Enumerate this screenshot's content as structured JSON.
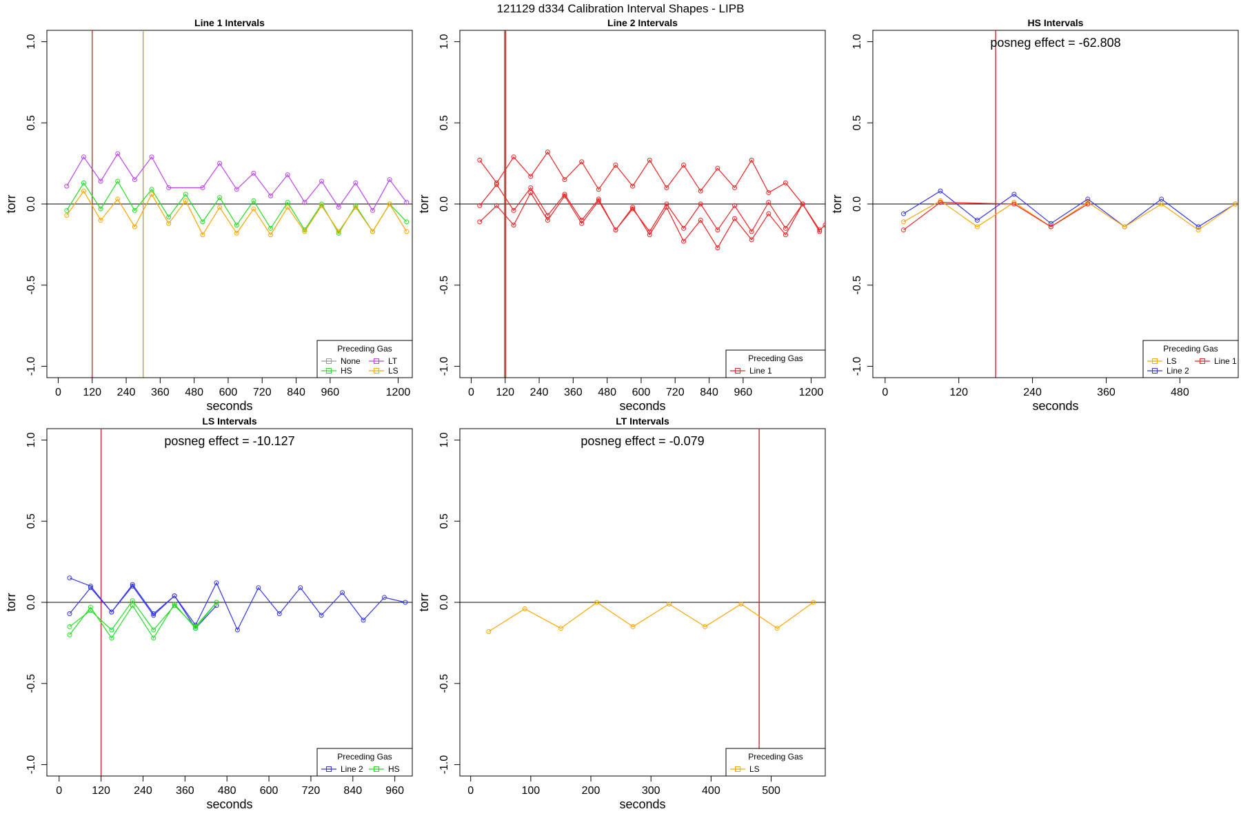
{
  "main_title": "121129   d334   Calibration Interval Shapes - LIPB",
  "chart_data": [
    {
      "type": "line",
      "title": "Line 1 Intervals",
      "xlabel": "seconds",
      "ylabel": "torr",
      "xlim": [
        -40,
        1250
      ],
      "ylim": [
        -1.07,
        1.07
      ],
      "xticks": [
        0,
        120,
        240,
        360,
        480,
        600,
        720,
        840,
        960,
        1200
      ],
      "yticks": [
        1.0,
        0.5,
        0.0,
        -0.5,
        -1.0
      ],
      "ytick_labels": [
        "1.0",
        "0.5",
        "0.0",
        "-0.5",
        "-1.0"
      ],
      "vlines": [
        {
          "x": 120,
          "color": "#c02020"
        },
        {
          "x": 300,
          "color": "#c8a000"
        }
      ],
      "legend": {
        "title": "Preceding Gas",
        "position": "bottom-right",
        "columns": 2,
        "entries": [
          {
            "label": "None",
            "color": "#999999"
          },
          {
            "label": "LT",
            "color": "#bb44ee"
          },
          {
            "label": "HS",
            "color": "#22dd22"
          },
          {
            "label": "LS",
            "color": "#ffa500"
          }
        ]
      },
      "series": [
        {
          "name": "LT",
          "color": "#bb44ee",
          "x": [
            30,
            90,
            150,
            210,
            270,
            330,
            390,
            510,
            570,
            630,
            690,
            750,
            810,
            870,
            930,
            990,
            1050,
            1110,
            1170,
            1230
          ],
          "y": [
            0.11,
            0.29,
            0.14,
            0.31,
            0.15,
            0.29,
            0.1,
            0.1,
            0.25,
            0.09,
            0.19,
            0.05,
            0.18,
            0.01,
            0.14,
            -0.02,
            0.13,
            -0.04,
            0.15,
            0.01
          ]
        },
        {
          "name": "HS",
          "color": "#22dd22",
          "x": [
            30,
            90,
            150,
            210,
            270,
            330,
            390,
            450,
            510,
            570,
            630,
            690,
            750,
            810,
            870,
            930,
            990,
            1050,
            1110,
            1170,
            1230
          ],
          "y": [
            -0.04,
            0.13,
            -0.03,
            0.14,
            -0.04,
            0.09,
            -0.08,
            0.06,
            -0.11,
            0.04,
            -0.13,
            0.02,
            -0.15,
            0.01,
            -0.16,
            0.0,
            -0.18,
            -0.01,
            -0.17,
            0.0,
            -0.11
          ]
        },
        {
          "name": "LS",
          "color": "#ffa500",
          "x": [
            30,
            90,
            150,
            210,
            270,
            330,
            390,
            450,
            510,
            570,
            630,
            690,
            750,
            810,
            870,
            930,
            990,
            1050,
            1110,
            1170,
            1230
          ],
          "y": [
            -0.07,
            0.08,
            -0.1,
            0.03,
            -0.14,
            0.06,
            -0.12,
            0.02,
            -0.19,
            -0.02,
            -0.18,
            -0.03,
            -0.19,
            -0.02,
            -0.17,
            -0.01,
            -0.17,
            -0.02,
            -0.17,
            0.0,
            -0.17
          ]
        }
      ]
    },
    {
      "type": "line",
      "title": "Line 2 Intervals",
      "xlabel": "seconds",
      "ylabel": "torr",
      "xlim": [
        -40,
        1250
      ],
      "ylim": [
        -1.07,
        1.07
      ],
      "xticks": [
        0,
        120,
        240,
        360,
        480,
        600,
        720,
        840,
        960,
        1200
      ],
      "yticks": [
        1.0,
        0.5,
        0.0,
        -0.5,
        -1.0
      ],
      "ytick_labels": [
        "1.0",
        "0.5",
        "0.0",
        "-0.5",
        "-1.0"
      ],
      "vlines": [
        {
          "x": 118,
          "color": "#c02020"
        },
        {
          "x": 122,
          "color": "#c02020"
        }
      ],
      "legend": {
        "title": "Preceding Gas",
        "position": "bottom-right",
        "columns": 1,
        "entries": [
          {
            "label": "Line 1",
            "color": "#ee2222"
          }
        ]
      },
      "series": [
        {
          "name": "Line 1 a",
          "color": "#ee2222",
          "x": [
            30,
            90,
            150,
            210,
            270,
            330,
            390,
            450,
            510,
            570,
            630,
            690,
            750,
            810,
            870,
            930,
            990,
            1050,
            1110,
            1170,
            1230,
            1250
          ],
          "y": [
            0.27,
            0.13,
            0.29,
            0.17,
            0.32,
            0.15,
            0.26,
            0.09,
            0.24,
            0.11,
            0.27,
            0.1,
            0.24,
            0.08,
            0.22,
            0.1,
            0.27,
            0.07,
            0.13,
            0.0,
            -0.16,
            -0.13
          ]
        },
        {
          "name": "Line 1 b",
          "color": "#ee2222",
          "x": [
            30,
            90,
            150,
            210,
            270,
            330,
            390,
            450,
            510,
            570,
            630,
            690,
            750,
            810,
            870,
            930,
            990,
            1050,
            1110,
            1170,
            1230
          ],
          "y": [
            -0.01,
            0.12,
            -0.04,
            0.1,
            -0.07,
            0.06,
            -0.1,
            0.03,
            -0.16,
            -0.03,
            -0.17,
            0.0,
            -0.15,
            0.0,
            -0.16,
            -0.01,
            -0.17,
            0.01,
            -0.15,
            0.0,
            -0.17
          ]
        },
        {
          "name": "Line 1 c",
          "color": "#ee2222",
          "x": [
            30,
            90,
            150,
            210,
            270,
            330,
            390,
            450,
            510,
            570,
            630,
            690,
            750,
            810,
            870,
            930,
            990,
            1050,
            1110,
            1170
          ],
          "y": [
            -0.11,
            -0.01,
            -0.13,
            0.07,
            -0.1,
            0.05,
            -0.12,
            0.02,
            -0.16,
            -0.02,
            -0.19,
            -0.02,
            -0.23,
            -0.1,
            -0.27,
            -0.09,
            -0.22,
            -0.06,
            -0.19,
            0.0
          ]
        }
      ]
    },
    {
      "type": "line",
      "title": "HS Intervals",
      "xlabel": "seconds",
      "ylabel": "torr",
      "annotation": "posneg effect = -62.808",
      "xlim": [
        -20,
        575
      ],
      "ylim": [
        -1.07,
        1.07
      ],
      "xticks": [
        0,
        120,
        240,
        360,
        480
      ],
      "yticks": [
        1.0,
        0.5,
        0.0,
        -0.5,
        -1.0
      ],
      "ytick_labels": [
        "1.0",
        "0.5",
        "0.0",
        "-0.5",
        "-1.0"
      ],
      "vlines": [
        {
          "x": 180,
          "color": "#c02020"
        }
      ],
      "legend": {
        "title": "Preceding Gas",
        "position": "bottom-right",
        "columns": 2,
        "entries": [
          {
            "label": "LS",
            "color": "#ffa500"
          },
          {
            "label": "Line 1",
            "color": "#ee2222"
          },
          {
            "label": "Line 2",
            "color": "#3333ee"
          }
        ]
      },
      "series": [
        {
          "name": "Line 2",
          "color": "#3333ee",
          "x": [
            30,
            90,
            150,
            210,
            270,
            330,
            390,
            450,
            510,
            570
          ],
          "y": [
            -0.06,
            0.08,
            -0.1,
            0.06,
            -0.12,
            0.03,
            -0.14,
            0.03,
            -0.14,
            0.0
          ]
        },
        {
          "name": "LS",
          "color": "#ffa500",
          "x": [
            30,
            90,
            150,
            210,
            270,
            330,
            390,
            450,
            510,
            570
          ],
          "y": [
            -0.11,
            0.02,
            -0.14,
            0.01,
            -0.14,
            0.01,
            -0.14,
            0.0,
            -0.16,
            0.0
          ]
        },
        {
          "name": "Line 1",
          "color": "#ee2222",
          "x": [
            30,
            90,
            210,
            270,
            330
          ],
          "y": [
            -0.16,
            0.01,
            0.0,
            -0.14,
            0.0
          ]
        }
      ]
    },
    {
      "type": "line",
      "title": "LS Intervals",
      "xlabel": "seconds",
      "ylabel": "torr",
      "annotation": "posneg effect = -10.127",
      "xlim": [
        -35,
        1010
      ],
      "ylim": [
        -1.07,
        1.07
      ],
      "xticks": [
        0,
        120,
        240,
        360,
        480,
        600,
        720,
        840,
        960
      ],
      "yticks": [
        1.0,
        0.5,
        0.0,
        -0.5,
        -1.0
      ],
      "ytick_labels": [
        "1.0",
        "0.5",
        "0.0",
        "-0.5",
        "-1.0"
      ],
      "vlines": [
        {
          "x": 120,
          "color": "#c02020"
        }
      ],
      "legend": {
        "title": "Preceding Gas",
        "position": "bottom-right",
        "columns": 2,
        "entries": [
          {
            "label": "Line 2",
            "color": "#3333ee"
          },
          {
            "label": "HS",
            "color": "#22dd22"
          }
        ]
      },
      "series": [
        {
          "name": "Line 2 a",
          "color": "#3333ee",
          "x": [
            30,
            90,
            150,
            210,
            270,
            330,
            390,
            450,
            510,
            570,
            630,
            690,
            750,
            810,
            870,
            930,
            990
          ],
          "y": [
            0.15,
            0.1,
            -0.06,
            0.11,
            -0.07,
            0.04,
            -0.14,
            0.12,
            -0.17,
            0.09,
            -0.07,
            0.09,
            -0.08,
            0.06,
            -0.11,
            0.03,
            0.0
          ]
        },
        {
          "name": "Line 2 b",
          "color": "#3333ee",
          "x": [
            30,
            90,
            150,
            210,
            270,
            330,
            390,
            450
          ],
          "y": [
            -0.07,
            0.09,
            -0.06,
            0.1,
            -0.08,
            0.04,
            -0.16,
            -0.02
          ]
        },
        {
          "name": "HS a",
          "color": "#22dd22",
          "x": [
            30,
            90,
            150,
            210,
            270,
            330,
            390,
            450
          ],
          "y": [
            -0.2,
            -0.03,
            -0.22,
            -0.02,
            -0.22,
            -0.01,
            -0.16,
            0.0
          ]
        },
        {
          "name": "HS b",
          "color": "#22dd22",
          "x": [
            30,
            90,
            150,
            210,
            270,
            330,
            390,
            450
          ],
          "y": [
            -0.15,
            -0.05,
            -0.17,
            0.01,
            -0.17,
            -0.02,
            -0.15,
            0.0
          ]
        }
      ]
    },
    {
      "type": "line",
      "title": "LT Intervals",
      "xlabel": "seconds",
      "ylabel": "torr",
      "annotation": "posneg effect = -0.079",
      "xlim": [
        -18,
        590
      ],
      "ylim": [
        -1.07,
        1.07
      ],
      "xticks": [
        0,
        100,
        200,
        300,
        400,
        500
      ],
      "yticks": [
        1.0,
        0.5,
        0.0,
        -0.5,
        -1.0
      ],
      "ytick_labels": [
        "1.0",
        "0.5",
        "0.0",
        "-0.5",
        "-1.0"
      ],
      "vlines": [
        {
          "x": 480,
          "color": "#c02020"
        }
      ],
      "legend": {
        "title": "Preceding Gas",
        "position": "bottom-right",
        "columns": 1,
        "entries": [
          {
            "label": "LS",
            "color": "#ffa500"
          }
        ]
      },
      "series": [
        {
          "name": "LS",
          "color": "#ffa500",
          "x": [
            30,
            90,
            150,
            210,
            270,
            330,
            390,
            450,
            510,
            570
          ],
          "y": [
            -0.18,
            -0.04,
            -0.16,
            0.0,
            -0.15,
            -0.01,
            -0.15,
            -0.01,
            -0.16,
            0.0
          ]
        }
      ]
    }
  ]
}
